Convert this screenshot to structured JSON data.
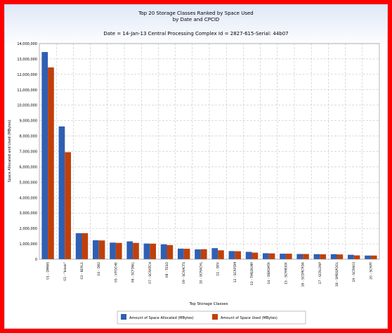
{
  "chart_data": {
    "type": "bar",
    "title": "Top 20 Storage Classes Ranked by Space Used",
    "title2": "by Date and CPCID",
    "subtitle": "Date = 14-Jan-13  Central Processing Complex Id = 2827-615-Serial: 44b07",
    "xlabel": "Top Storage Classes",
    "ylabel": "Space Allocated and Used (MBytes)",
    "ylim": [
      0,
      14000000
    ],
    "grid": true,
    "legend_position": "bottom",
    "y_ticks": [
      "0",
      "1,000,000",
      "2,000,000",
      "3,000,000",
      "4,000,000",
      "5,000,000",
      "6,000,000",
      "7,000,000",
      "8,000,000",
      "9,000,000",
      "10,000,000",
      "11,000,000",
      "12,000,000",
      "13,000,000",
      "14,000,000"
    ],
    "categories": [
      "01 - DMWS",
      "02 - \"blank\"",
      "03 - BERL1",
      "04 - DB2",
      "05 - VTOCHE",
      "06 - SCFDWL",
      "07 - SCRATCH",
      "08 - TESO",
      "09 - SCRACTS",
      "10 - SCRACHL",
      "11 - DEV",
      "12 - SCRPDM",
      "13 - TMSDUMP",
      "14 - DBXDATA",
      "15 - SCRM30K",
      "16 - SCDRCRDA",
      "17 - SCRLONP",
      "18 - SMSSPOOL",
      "19 - SCRN03",
      "20 - SCRPT"
    ],
    "series": [
      {
        "name": "Amount of Space Allocated (MBytes)",
        "color": "#2f5fb3",
        "values": [
          13450000,
          8620000,
          1690000,
          1230000,
          1080000,
          1160000,
          1020000,
          970000,
          690000,
          640000,
          720000,
          530000,
          480000,
          390000,
          360000,
          340000,
          330000,
          330000,
          290000,
          240000
        ]
      },
      {
        "name": "Amount of Space Used (MBytes)",
        "color": "#c0400a",
        "values": [
          12450000,
          6950000,
          1690000,
          1220000,
          1060000,
          1060000,
          1010000,
          920000,
          680000,
          650000,
          580000,
          520000,
          430000,
          380000,
          360000,
          340000,
          320000,
          310000,
          250000,
          240000
        ]
      }
    ]
  }
}
